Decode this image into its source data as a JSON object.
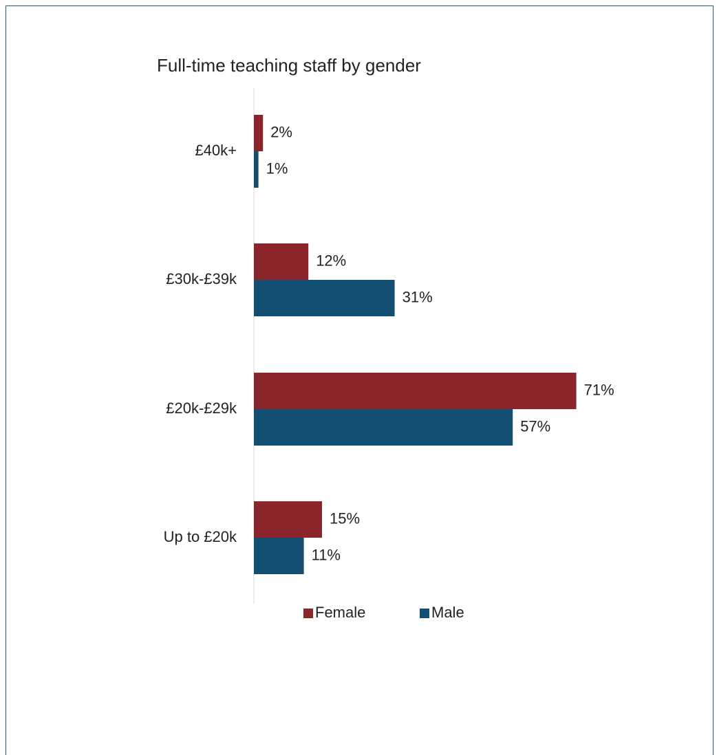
{
  "chart_data": {
    "type": "bar",
    "orientation": "horizontal",
    "title": "Full-time teaching staff by gender",
    "categories": [
      "£40k+",
      "£30k-£39k",
      "£20k-£29k",
      "Up to £20k"
    ],
    "series": [
      {
        "name": "Female",
        "color": "#8b252b",
        "values": [
          2,
          12,
          71,
          15
        ],
        "labels": [
          "2%",
          "12%",
          "71%",
          "15%"
        ]
      },
      {
        "name": "Male",
        "color": "#124d72",
        "values": [
          1,
          31,
          57,
          11
        ],
        "labels": [
          "1%",
          "31%",
          "57%",
          "11%"
        ]
      }
    ],
    "unit": "%",
    "xlim": [
      0,
      80
    ],
    "grid": false,
    "legend_position": "bottom"
  }
}
